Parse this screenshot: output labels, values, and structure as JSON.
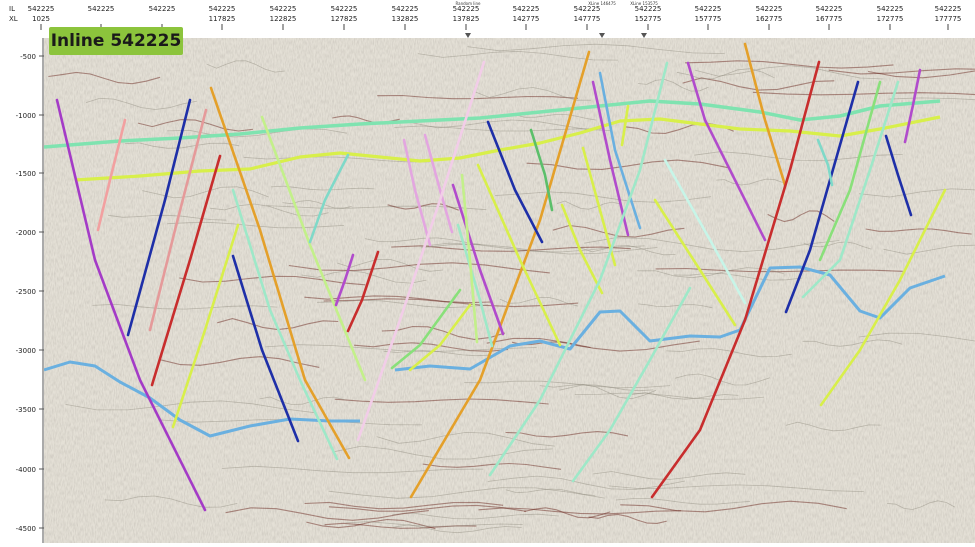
{
  "header": {
    "il_label": "IL",
    "xl_label": "XL",
    "columns": [
      {
        "il": "542225",
        "xl": "1025"
      },
      {
        "il": "542225",
        "xl": ""
      },
      {
        "il": "542225",
        "xl": ""
      },
      {
        "il": "542225",
        "xl": "117825"
      },
      {
        "il": "542225",
        "xl": "122825"
      },
      {
        "il": "542225",
        "xl": "127825"
      },
      {
        "il": "542225",
        "xl": "132825"
      },
      {
        "il": "542225",
        "xl": "137825"
      },
      {
        "il": "542225",
        "xl": "142775"
      },
      {
        "il": "542225",
        "xl": "147775"
      },
      {
        "il": "542225",
        "xl": "152775"
      },
      {
        "il": "542225",
        "xl": "157775"
      },
      {
        "il": "542225",
        "xl": "162775"
      },
      {
        "il": "542225",
        "xl": "167775"
      },
      {
        "il": "542225",
        "xl": "172775"
      },
      {
        "il": "542225",
        "xl": "177775"
      }
    ],
    "markers": [
      "Random line",
      "XLine 146475",
      "XLine 153575"
    ]
  },
  "title_badge": "Inline 542225",
  "depth_axis": {
    "labels": [
      "-500",
      "-1000",
      "-1500",
      "-2000",
      "-2500",
      "-3000",
      "-3500",
      "-4000",
      "-4500"
    ]
  },
  "colors": {
    "badge": "#8cc43c",
    "horizon_green": "#7fe3b0",
    "horizon_yellow": "#d8ef4a",
    "horizon_blue": "#6ab0e0"
  }
}
